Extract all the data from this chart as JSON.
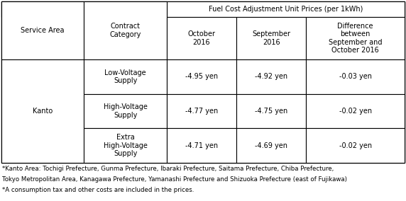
{
  "title": "Fuel Cost Adjustment Unit Prices (per 1kWh)",
  "col_headers": [
    "Service Area",
    "Contract\nCategory",
    "October\n2016",
    "September\n2016",
    "Difference\nbetween\nSeptember and\nOctober 2016"
  ],
  "rows": [
    [
      "Kanto",
      "Low-Voltage\nSupply",
      "-4.95 yen",
      "-4.92 yen",
      "-0.03 yen"
    ],
    [
      "Kanto",
      "High-Voltage\nSupply",
      "-4.77 yen",
      "-4.75 yen",
      "-0.02 yen"
    ],
    [
      "Kanto",
      "Extra\nHigh-Voltage\nSupply",
      "-4.71 yen",
      "-4.69 yen",
      "-0.02 yen"
    ]
  ],
  "footnotes": [
    "*Kanto Area: Tochigi Prefecture, Gunma Prefecture, Ibaraki Prefecture, Saitama Prefecture, Chiba Prefecture,",
    "Tokyo Metropolitan Area, Kanagawa Prefecture, Yamanashi Prefecture and Shizuoka Prefecture (east of Fujikawa)",
    "*A consumption tax and other costs are included in the prices."
  ],
  "line_color": "#000000",
  "font_size": 7.0,
  "footnote_font_size": 6.2,
  "fig_width": 5.72,
  "fig_height": 2.84,
  "dpi": 100
}
